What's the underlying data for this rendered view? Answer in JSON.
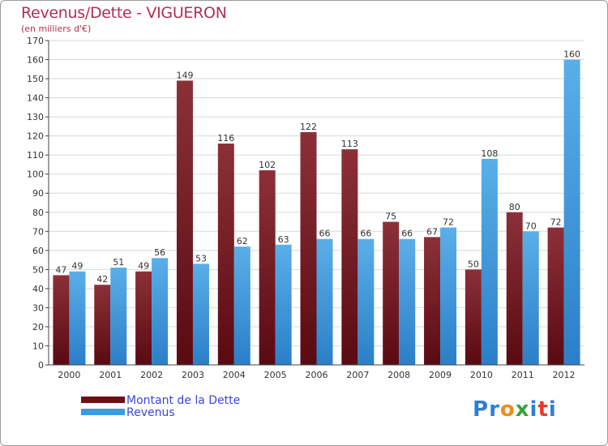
{
  "header": {
    "title": "Revenus/Dette - VIGUERON",
    "subtitle": "(en milliers d'€)"
  },
  "legend": {
    "items": [
      {
        "label": "Montant de la Dette",
        "color": "#6e0f17"
      },
      {
        "label": "Revenus",
        "color": "#3d9be0"
      }
    ]
  },
  "brand": {
    "letters": [
      "P",
      "r",
      "o",
      "x",
      "i",
      "t",
      "i"
    ],
    "colors": [
      "#2d7fd4",
      "#2d7fd4",
      "#f08c1a",
      "#3aa33a",
      "#2d7fd4",
      "#e8392b",
      "#2d7fd4"
    ]
  },
  "colors": {
    "debt_top": "#8c3038",
    "debt_bottom": "#5a0a12",
    "rev_top": "#5aaee8",
    "rev_bottom": "#2b7fc8",
    "grid": "#d8d8d8",
    "axis": "#444444",
    "title": "#b03050"
  },
  "chart_data": {
    "type": "bar",
    "title": "Revenus/Dette - VIGUERON",
    "subtitle": "(en milliers d'€)",
    "xlabel": "",
    "ylabel": "",
    "ylim": [
      0,
      170
    ],
    "ytick_step": 10,
    "categories": [
      "2000",
      "2001",
      "2002",
      "2003",
      "2004",
      "2005",
      "2006",
      "2007",
      "2008",
      "2009",
      "2010",
      "2011",
      "2012"
    ],
    "series": [
      {
        "name": "Montant de la Dette",
        "values": [
          47,
          42,
          49,
          149,
          116,
          102,
          122,
          113,
          75,
          67,
          50,
          80,
          72
        ]
      },
      {
        "name": "Revenus",
        "values": [
          49,
          51,
          56,
          53,
          62,
          63,
          66,
          66,
          66,
          72,
          108,
          70,
          160
        ]
      }
    ],
    "legend_position": "bottom-left",
    "grid": true
  }
}
